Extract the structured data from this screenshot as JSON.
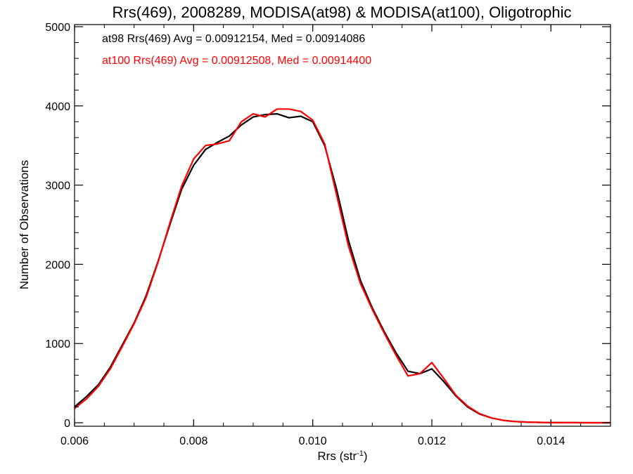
{
  "chart_data": {
    "type": "line",
    "title": "Rrs(469), 2008289, MODISA(at98) & MODISA(at100), Oligotrophic",
    "xlabel": "Rrs (str",
    "xlabel_sup": "-1",
    "xlabel_close": ")",
    "ylabel": "Number of Observations",
    "xlim": [
      0.006,
      0.015
    ],
    "ylim": [
      0,
      5000
    ],
    "x_ticks": [
      "0.006",
      "0.008",
      "0.010",
      "0.012",
      "0.014"
    ],
    "y_ticks": [
      "0",
      "1000",
      "2000",
      "3000",
      "4000",
      "5000"
    ],
    "grid": false,
    "annotations": [
      {
        "text": "at98 Rrs(469) Avg = 0.00912154, Med = 0.00914086",
        "color": "#000000"
      },
      {
        "text": "at100 Rrs(469) Avg = 0.00912508, Med = 0.00914400",
        "color": "#ff0000"
      }
    ],
    "series": [
      {
        "color": "#000000",
        "x": [
          0.006,
          0.0062,
          0.0064,
          0.0066,
          0.0068,
          0.007,
          0.0072,
          0.0074,
          0.0076,
          0.0078,
          0.008,
          0.0082,
          0.0084,
          0.0086,
          0.0088,
          0.009,
          0.0092,
          0.0094,
          0.0096,
          0.0098,
          0.01,
          0.0102,
          0.0104,
          0.0106,
          0.0108,
          0.011,
          0.0112,
          0.0114,
          0.0116,
          0.0118,
          0.012,
          0.0122,
          0.0124,
          0.0126,
          0.0128,
          0.013,
          0.0132,
          0.0134,
          0.0136,
          0.0138,
          0.014,
          0.0142,
          0.0144,
          0.0146,
          0.0148,
          0.015
        ],
        "y": [
          200,
          330,
          480,
          700,
          980,
          1260,
          1600,
          2030,
          2500,
          2950,
          3250,
          3450,
          3540,
          3620,
          3760,
          3860,
          3890,
          3900,
          3850,
          3870,
          3800,
          3500,
          2950,
          2300,
          1800,
          1450,
          1150,
          880,
          650,
          620,
          680,
          520,
          340,
          200,
          110,
          60,
          30,
          15,
          8,
          4,
          2,
          1,
          1,
          0,
          0,
          0
        ]
      },
      {
        "color": "#ff0000",
        "x": [
          0.006,
          0.0062,
          0.0064,
          0.0066,
          0.0068,
          0.007,
          0.0072,
          0.0074,
          0.0076,
          0.0078,
          0.008,
          0.0082,
          0.0084,
          0.0086,
          0.0088,
          0.009,
          0.0092,
          0.0094,
          0.0096,
          0.0098,
          0.01,
          0.0102,
          0.0104,
          0.0106,
          0.0108,
          0.011,
          0.0112,
          0.0114,
          0.0116,
          0.0118,
          0.012,
          0.0122,
          0.0124,
          0.0126,
          0.0128,
          0.013,
          0.0132,
          0.0134,
          0.0136,
          0.0138,
          0.014,
          0.0142,
          0.0144,
          0.0146,
          0.0148,
          0.015
        ],
        "y": [
          180,
          300,
          460,
          680,
          960,
          1250,
          1580,
          2020,
          2520,
          2990,
          3330,
          3500,
          3520,
          3560,
          3800,
          3900,
          3860,
          3960,
          3960,
          3930,
          3820,
          3520,
          2880,
          2230,
          1760,
          1430,
          1130,
          850,
          590,
          620,
          760,
          560,
          350,
          210,
          115,
          60,
          30,
          15,
          8,
          4,
          2,
          1,
          1,
          0,
          0,
          0
        ]
      }
    ]
  }
}
